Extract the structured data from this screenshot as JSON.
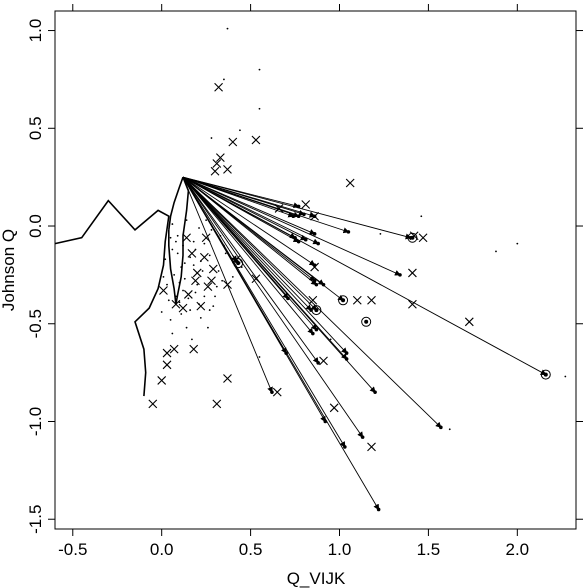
{
  "chart_data": {
    "type": "scatter",
    "title": "",
    "xlabel": "Q_VIJK",
    "ylabel": "Johnson Q",
    "xlim": [
      -0.6,
      2.33
    ],
    "ylim": [
      -1.55,
      1.1
    ],
    "xticks": [
      -0.5,
      0.0,
      0.5,
      1.0,
      1.5,
      2.0
    ],
    "xtick_labels": [
      "-0.5",
      "0.0",
      "0.5",
      "1.0",
      "1.5",
      "2.0"
    ],
    "yticks": [
      -1.5,
      -1.0,
      -0.5,
      0.0,
      0.5,
      1.0
    ],
    "ytick_labels": [
      "-1.5",
      "-1.0",
      "-0.5",
      "0.0",
      "0.5",
      "1.0"
    ],
    "grid": false,
    "legend": "none",
    "arrow_origin": [
      0.12,
      0.25
    ],
    "arrow_ends": [
      [
        0.77,
        0.1
      ],
      [
        0.8,
        0.06
      ],
      [
        0.77,
        0.05
      ],
      [
        0.86,
        0.05
      ],
      [
        1.05,
        -0.03
      ],
      [
        1.4,
        -0.06
      ],
      [
        0.86,
        -0.04
      ],
      [
        0.74,
        0.05
      ],
      [
        0.75,
        -0.06
      ],
      [
        0.81,
        -0.07
      ],
      [
        0.86,
        -0.2
      ],
      [
        0.86,
        -0.28
      ],
      [
        0.77,
        -0.08
      ],
      [
        0.88,
        -0.09
      ],
      [
        1.34,
        -0.25
      ],
      [
        0.87,
        -0.3
      ],
      [
        0.91,
        -0.3
      ],
      [
        0.84,
        -0.43
      ],
      [
        0.87,
        -0.43
      ],
      [
        1.02,
        -0.38
      ],
      [
        1.04,
        -0.68
      ],
      [
        1.04,
        -0.65
      ],
      [
        0.87,
        -0.53
      ],
      [
        0.71,
        -0.37
      ],
      [
        0.88,
        -0.7
      ],
      [
        0.7,
        -0.65
      ],
      [
        1.2,
        -0.85
      ],
      [
        1.57,
        -1.03
      ],
      [
        1.13,
        -1.08
      ],
      [
        1.03,
        -1.13
      ],
      [
        0.92,
        -1.0
      ],
      [
        1.22,
        -1.45
      ],
      [
        0.62,
        -0.85
      ],
      [
        0.42,
        -0.18
      ],
      [
        2.16,
        -0.76
      ],
      [
        0.85,
        -0.55
      ]
    ],
    "crosses": [
      [
        0.32,
        0.71
      ],
      [
        0.53,
        0.44
      ],
      [
        0.4,
        0.43
      ],
      [
        0.33,
        0.35
      ],
      [
        0.31,
        0.32
      ],
      [
        0.37,
        0.29
      ],
      [
        0.3,
        0.28
      ],
      [
        1.06,
        0.22
      ],
      [
        0.81,
        0.11
      ],
      [
        0.66,
        0.09
      ],
      [
        0.86,
        0.05
      ],
      [
        1.42,
        -0.05
      ],
      [
        1.47,
        -0.06
      ],
      [
        0.14,
        -0.06
      ],
      [
        0.25,
        -0.06
      ],
      [
        0.17,
        -0.14
      ],
      [
        0.24,
        -0.16
      ],
      [
        0.42,
        -0.17
      ],
      [
        0.29,
        -0.22
      ],
      [
        0.2,
        -0.24
      ],
      [
        0.53,
        -0.27
      ],
      [
        1.41,
        -0.24
      ],
      [
        0.86,
        -0.21
      ],
      [
        0.19,
        -0.28
      ],
      [
        0.28,
        -0.28
      ],
      [
        0.37,
        -0.3
      ],
      [
        0.26,
        -0.31
      ],
      [
        0.01,
        -0.33
      ],
      [
        0.15,
        -0.35
      ],
      [
        1.1,
        -0.38
      ],
      [
        1.18,
        -0.38
      ],
      [
        0.22,
        -0.41
      ],
      [
        0.08,
        -0.4
      ],
      [
        1.41,
        -0.4
      ],
      [
        0.12,
        -0.42
      ],
      [
        1.73,
        -0.49
      ],
      [
        0.03,
        -0.65
      ],
      [
        0.07,
        -0.63
      ],
      [
        0.18,
        -0.63
      ],
      [
        0.91,
        -0.69
      ],
      [
        0.03,
        -0.71
      ],
      [
        0.37,
        -0.78
      ],
      [
        0.0,
        -0.79
      ],
      [
        0.65,
        -0.85
      ],
      [
        -0.05,
        -0.91
      ],
      [
        0.31,
        -0.91
      ],
      [
        0.97,
        -0.93
      ],
      [
        1.18,
        -1.13
      ],
      [
        0.85,
        -0.38
      ]
    ],
    "circled_points": [
      [
        1.41,
        -0.06
      ],
      [
        1.02,
        -0.38
      ],
      [
        1.15,
        -0.49
      ],
      [
        0.87,
        -0.43
      ],
      [
        0.43,
        -0.19
      ],
      [
        2.16,
        -0.76
      ]
    ],
    "curve": [
      [
        -0.6,
        -0.09
      ],
      [
        -0.45,
        -0.06
      ],
      [
        -0.3,
        0.13
      ],
      [
        -0.15,
        -0.02
      ],
      [
        -0.02,
        0.08
      ],
      [
        0.04,
        0.05
      ],
      [
        0.02,
        -0.08
      ],
      [
        0.01,
        -0.2
      ],
      [
        -0.02,
        -0.32
      ],
      [
        -0.07,
        -0.42
      ],
      [
        -0.15,
        -0.49
      ],
      [
        -0.1,
        -0.63
      ],
      [
        -0.09,
        -0.75
      ],
      [
        -0.1,
        -0.87
      ]
    ],
    "upper_branch": [
      [
        0.12,
        0.25
      ],
      [
        0.1,
        0.2
      ],
      [
        0.07,
        0.12
      ],
      [
        0.05,
        0.05
      ],
      [
        0.04,
        -0.02
      ]
    ],
    "loop": [
      [
        0.12,
        0.25
      ],
      [
        0.15,
        0.18
      ],
      [
        0.14,
        0.08
      ],
      [
        0.12,
        -0.05
      ],
      [
        0.12,
        -0.15
      ],
      [
        0.11,
        -0.26
      ],
      [
        0.09,
        -0.35
      ],
      [
        0.08,
        -0.4
      ],
      [
        0.07,
        -0.32
      ],
      [
        0.05,
        -0.22
      ],
      [
        0.04,
        -0.1
      ],
      [
        0.04,
        -0.02
      ]
    ],
    "small_dots": [
      [
        0.37,
        1.01
      ],
      [
        0.55,
        0.8
      ],
      [
        0.35,
        0.75
      ],
      [
        0.55,
        0.6
      ],
      [
        0.28,
        0.45
      ],
      [
        0.44,
        0.49
      ],
      [
        1.46,
        0.05
      ],
      [
        2.0,
        -0.09
      ],
      [
        1.88,
        -0.13
      ],
      [
        2.27,
        -0.77
      ],
      [
        1.62,
        -1.04
      ],
      [
        1.23,
        -0.04
      ],
      [
        0.95,
        -0.58
      ],
      [
        0.55,
        -0.67
      ],
      [
        0.22,
        -0.47
      ],
      [
        0.29,
        -0.41
      ],
      [
        0.24,
        -0.36
      ],
      [
        0.06,
        -0.55
      ],
      [
        0.14,
        -0.52
      ],
      [
        0.01,
        -0.26
      ],
      [
        0.11,
        -0.21
      ],
      [
        0.18,
        -0.08
      ],
      [
        0.06,
        0.01
      ],
      [
        0.25,
        0.03
      ],
      [
        0.35,
        -0.1
      ],
      [
        0.2,
        -0.3
      ],
      [
        0.32,
        -0.23
      ],
      [
        0.09,
        -0.14
      ],
      [
        0.16,
        -0.43
      ],
      [
        0.04,
        -0.38
      ],
      [
        0.13,
        -0.19
      ],
      [
        0.27,
        -0.15
      ],
      [
        0.05,
        -0.48
      ],
      [
        0.19,
        -0.12
      ],
      [
        0.1,
        -0.29
      ],
      [
        0.02,
        -0.17
      ],
      [
        0.08,
        -0.08
      ],
      [
        0.23,
        -0.23
      ],
      [
        0.15,
        -0.37
      ],
      [
        0.07,
        -0.25
      ],
      [
        0.12,
        -0.33
      ],
      [
        0.3,
        -0.36
      ],
      [
        0.33,
        -0.05
      ],
      [
        0.21,
        -0.01
      ],
      [
        0.17,
        -0.58
      ],
      [
        0.26,
        -0.52
      ],
      [
        0.11,
        -0.45
      ],
      [
        0.0,
        -0.44
      ],
      [
        0.4,
        -0.26
      ],
      [
        0.36,
        -0.14
      ],
      [
        0.09,
        -0.05
      ],
      [
        0.14,
        0.03
      ],
      [
        0.28,
        -0.02
      ],
      [
        0.03,
        -0.3
      ],
      [
        0.18,
        -0.2
      ],
      [
        0.24,
        -0.09
      ],
      [
        0.06,
        -0.12
      ],
      [
        0.13,
        -0.27
      ],
      [
        0.21,
        -0.4
      ],
      [
        0.31,
        -0.31
      ],
      [
        0.08,
        -0.36
      ],
      [
        0.16,
        -0.16
      ],
      [
        0.45,
        -0.21
      ],
      [
        0.05,
        -0.06
      ],
      [
        0.19,
        -0.34
      ],
      [
        0.27,
        -0.43
      ],
      [
        0.1,
        -0.39
      ],
      [
        0.34,
        -0.28
      ],
      [
        0.22,
        -0.18
      ],
      [
        0.12,
        -0.1
      ]
    ]
  }
}
